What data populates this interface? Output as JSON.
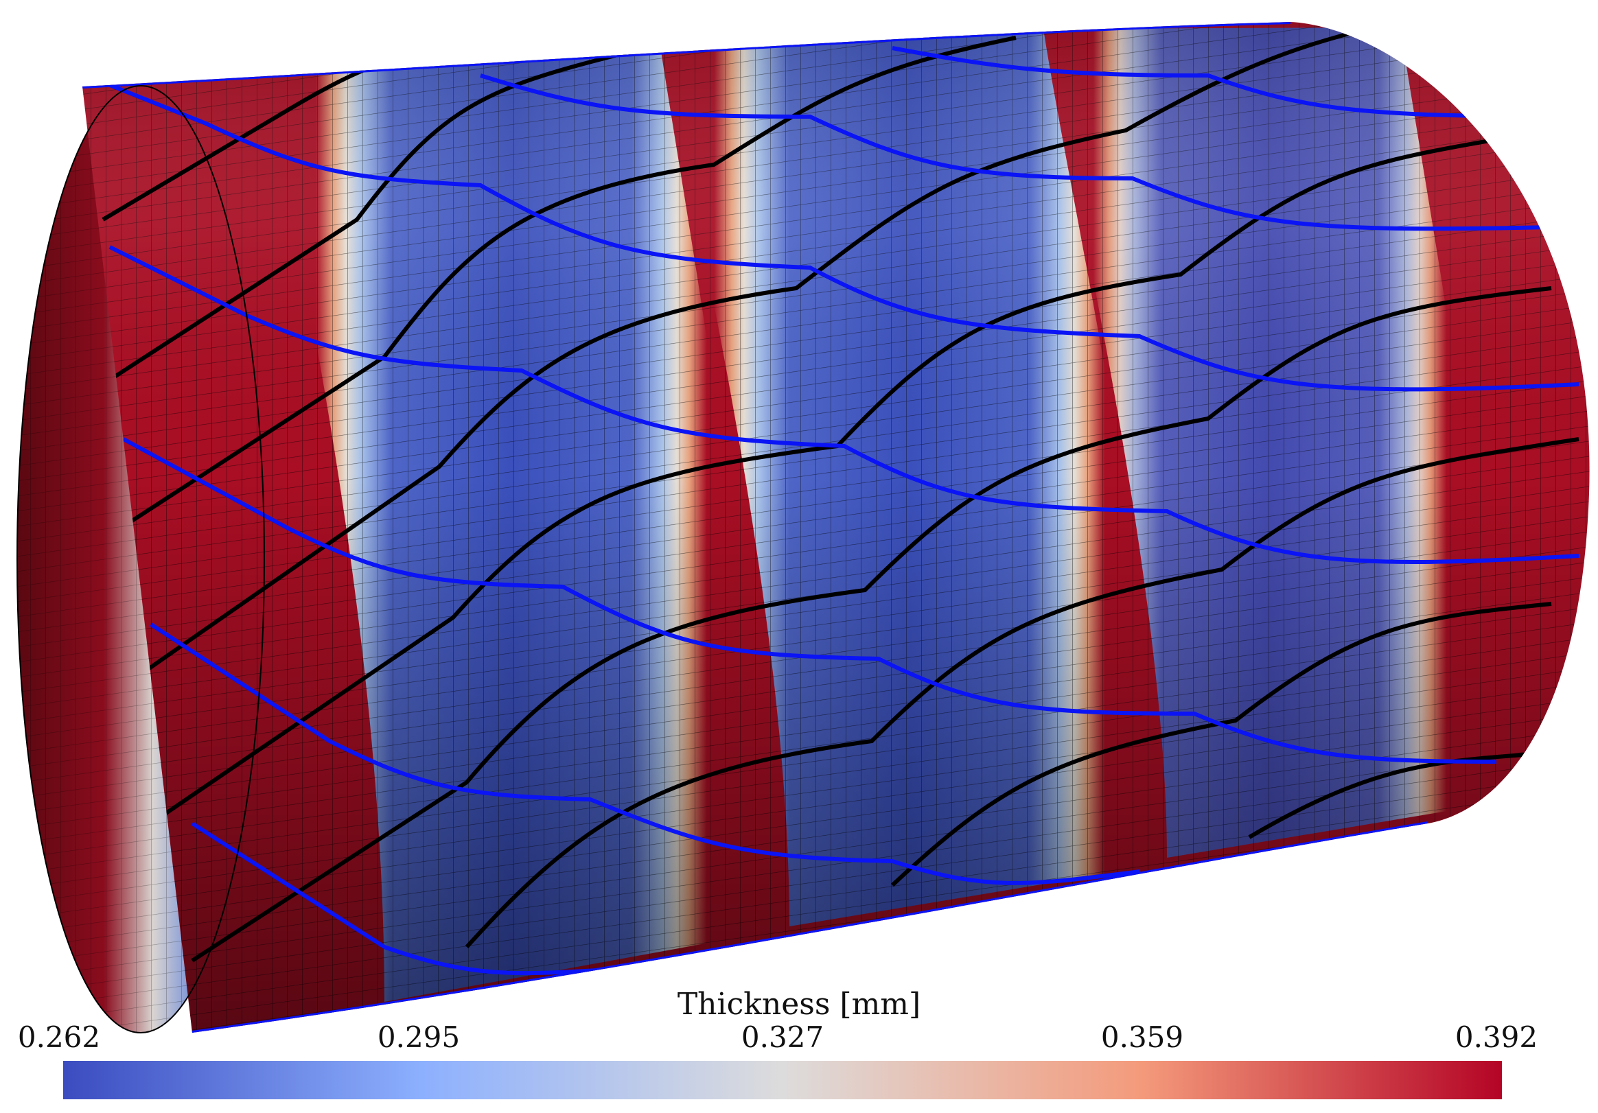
{
  "colorbar": {
    "title": "Thickness [mm]",
    "ticks": [
      "0.262",
      "0.295",
      "0.327",
      "0.359",
      "0.392"
    ],
    "range": [
      0.262,
      0.392
    ],
    "colors": [
      "#3b4cc0",
      "#8db0fe",
      "#dddcdc",
      "#f49a7b",
      "#b40426"
    ]
  },
  "scene": {
    "object": "cylindrical-shell",
    "colors": {
      "thick": "#a90e24",
      "thick_dark": "#5a0811",
      "thin": "#3b4cc0",
      "thin_dark": "#1a2050",
      "mid": "#dddcdc",
      "fiber_a": "#000000",
      "fiber_b": "#0a14f5",
      "mesh": "#000000"
    }
  }
}
